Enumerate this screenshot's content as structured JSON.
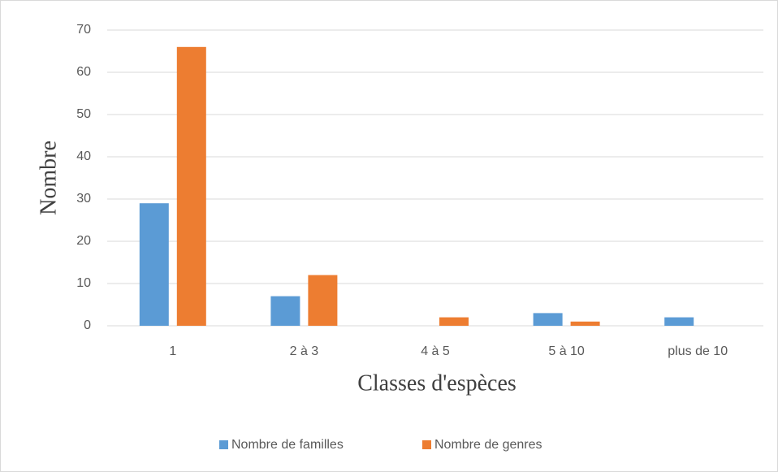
{
  "chart_data": {
    "type": "bar",
    "xlabel": "Classes d'espèces",
    "ylabel": "Nombre",
    "categories": [
      "1",
      "2 à 3",
      "4 à 5",
      "5 à 10",
      "plus de 10"
    ],
    "series": [
      {
        "name": "Nombre de familles",
        "color": "#5b9bd5",
        "values": [
          29,
          7,
          0,
          3,
          2
        ]
      },
      {
        "name": "Nombre de genres",
        "color": "#ed7d31",
        "values": [
          66,
          12,
          2,
          1,
          0
        ]
      }
    ],
    "ylim": [
      0,
      70
    ],
    "yticks": [
      0,
      10,
      20,
      30,
      40,
      50,
      60,
      70
    ],
    "grid": true,
    "legend": "bottom"
  }
}
